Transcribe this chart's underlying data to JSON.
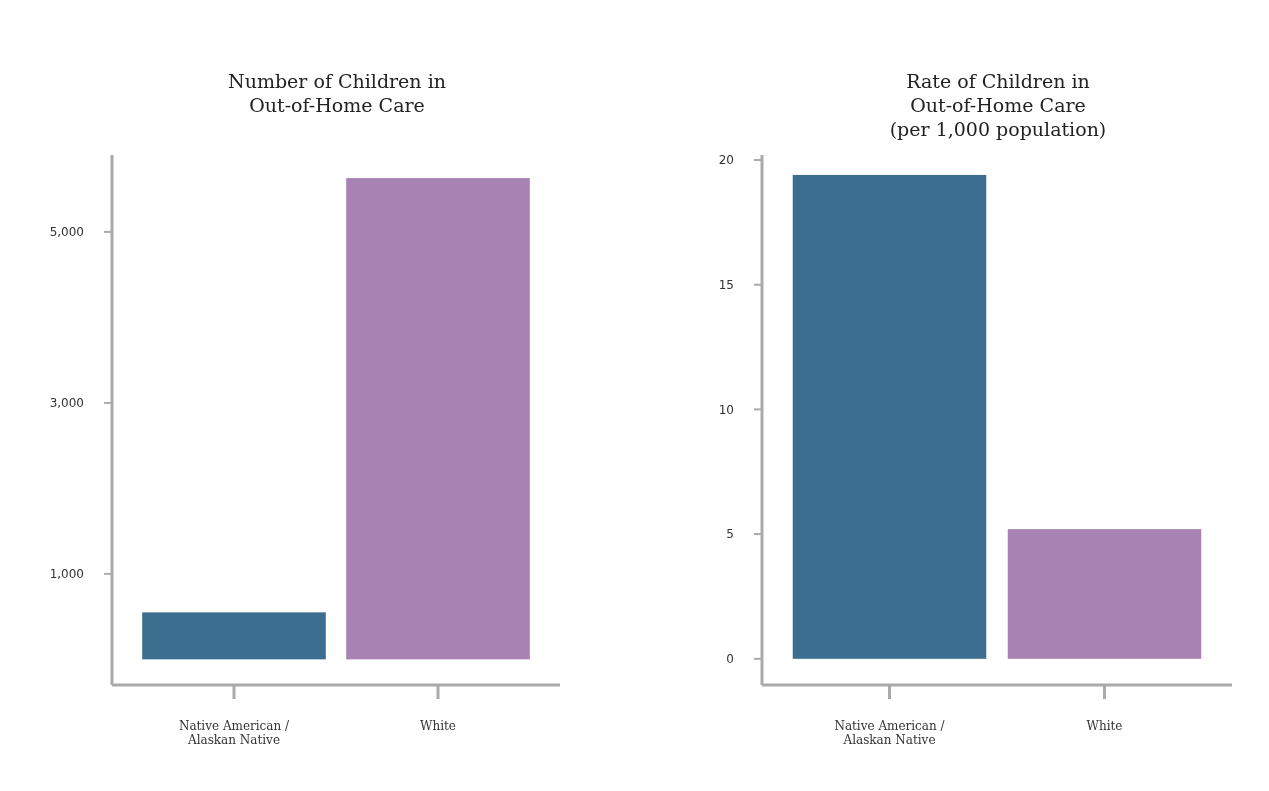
{
  "chart_data": [
    {
      "type": "bar",
      "title": "Number of Children in\nOut-of-Home Care",
      "categories": [
        "Native American / Alaskan Native",
        "White"
      ],
      "colors": [
        "#3b6e8f",
        "#a882b3"
      ],
      "values": [
        550,
        5630
      ],
      "ylim": [
        -300,
        5900
      ],
      "yticks": [
        {
          "value": 1000,
          "label": "1,000"
        },
        {
          "value": 3000,
          "label": "3,000"
        },
        {
          "value": 5000,
          "label": "5,000"
        }
      ],
      "grid": false
    },
    {
      "type": "bar",
      "title": "Rate of Children in\nOut-of-Home Care\n(per 1,000 population)",
      "categories": [
        "Native American / Alaskan Native",
        "White"
      ],
      "colors": [
        "#3b6e8f",
        "#a882b3"
      ],
      "values": [
        19.4,
        5.2
      ],
      "ylim": [
        -1.05,
        20.2
      ],
      "yticks": [
        0,
        5,
        10,
        15,
        20
      ],
      "grid": false
    }
  ]
}
